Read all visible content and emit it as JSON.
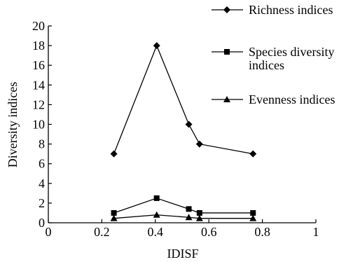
{
  "chart_data": {
    "type": "line",
    "xlabel": "IDISF",
    "ylabel": "Diversity indices",
    "xlim": [
      0,
      1
    ],
    "ylim": [
      0,
      20
    ],
    "xticks": [
      0,
      0.2,
      0.4,
      0.6,
      0.8,
      1
    ],
    "xtick_labels": [
      "0",
      "0.2",
      "0.4",
      "0.6",
      "0.8",
      "1"
    ],
    "yticks": [
      0,
      2,
      4,
      6,
      8,
      10,
      12,
      14,
      16,
      18,
      20
    ],
    "ytick_labels": [
      "0",
      "2",
      "4",
      "6",
      "8",
      "10",
      "12",
      "14",
      "16",
      "18",
      "20"
    ],
    "grid": false,
    "legend_position": "top-right, outside plot",
    "x": [
      0.245,
      0.405,
      0.525,
      0.565,
      0.765
    ],
    "series": [
      {
        "name": "Richness indices",
        "marker": "diamond",
        "legend_lines": [
          "Richness indices"
        ],
        "values": [
          7,
          18,
          10,
          8,
          7
        ]
      },
      {
        "name": "Species diversity indices",
        "marker": "square",
        "legend_lines": [
          "Species diversity",
          "indices"
        ],
        "values": [
          1.0,
          2.5,
          1.4,
          1.0,
          1.0
        ]
      },
      {
        "name": "Evenness indices",
        "marker": "triangle",
        "legend_lines": [
          "Evenness indices"
        ],
        "values": [
          0.45,
          0.8,
          0.55,
          0.45,
          0.45
        ]
      }
    ]
  }
}
